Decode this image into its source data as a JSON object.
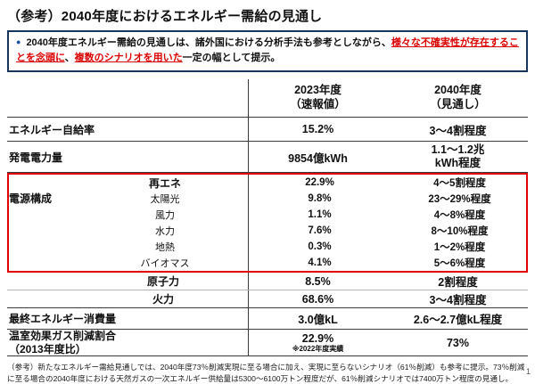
{
  "page": {
    "title": "（参考）2040年度におけるエネルギー需給の見通し",
    "page_number": "1"
  },
  "note": {
    "bullet": "●",
    "part1": "2040年度エネルギー需給の見通しは、諸外国における分析手法も参考としながら、",
    "part2_red": "様々な不確実性が存在することを念頭に",
    "part3": "、",
    "part4_red": "複数のシナリオを用いた",
    "part5": "一定の幅として提示。"
  },
  "table": {
    "header": {
      "col2023_line1": "2023年度",
      "col2023_line2": "（速報値）",
      "col2040_line1": "2040年度",
      "col2040_line2": "（見通し）"
    },
    "rows": {
      "jikyuritsu": {
        "label": "エネルギー自給率",
        "v2023": "15.2%",
        "v2040": "3～4割程度"
      },
      "hatsuden": {
        "label": "発電電力量",
        "v2023": "9854億kWh",
        "v2040_line1": "1.1～1.2兆",
        "v2040_line2": "kWh程度"
      },
      "dengen_label": "電源構成",
      "saiene": {
        "label": "再エネ",
        "v2023": "22.9%",
        "v2040": "4～5割程度"
      },
      "taiyoko": {
        "label": "太陽光",
        "v2023": "9.8%",
        "v2040": "23～29%程度"
      },
      "furyoku": {
        "label": "風力",
        "v2023": "1.1%",
        "v2040": "4～8%程度"
      },
      "suiryoku": {
        "label": "水力",
        "v2023": "7.6%",
        "v2040": "8～10%程度"
      },
      "chinetsu": {
        "label": "地熱",
        "v2023": "0.3%",
        "v2040": "1～2%程度"
      },
      "biomass": {
        "label": "バイオマス",
        "v2023": "4.1%",
        "v2040": "5～6%程度"
      },
      "genshiryoku": {
        "label": "原子力",
        "v2023": "8.5%",
        "v2040": "2割程度"
      },
      "karyoku": {
        "label": "火力",
        "v2023": "68.6%",
        "v2040": "3～4割程度"
      },
      "saishu": {
        "label": "最終エネルギー消費量",
        "v2023": "3.0億kL",
        "v2040": "2.6～2.7億kL程度"
      },
      "onshitsu": {
        "label_line1": "温室効果ガス削減割合",
        "label_line2": "（2013年度比）",
        "v2023": "22.9%",
        "v2023_note": "※2022年度実績",
        "v2040": "73%"
      }
    }
  },
  "footer": {
    "text": "（参考）新たなエネルギー需給見通しでは、2040年度73％削減実現に至る場合に加え、実現に至らないシナリオ（61％削減）も参考に提示。73％削減に至る場合の2040年度における天然ガスの一次エネルギー供給量は5300～6100万トン程度だが、61％削減シナリオでは7400万トン程度の見通し。"
  }
}
